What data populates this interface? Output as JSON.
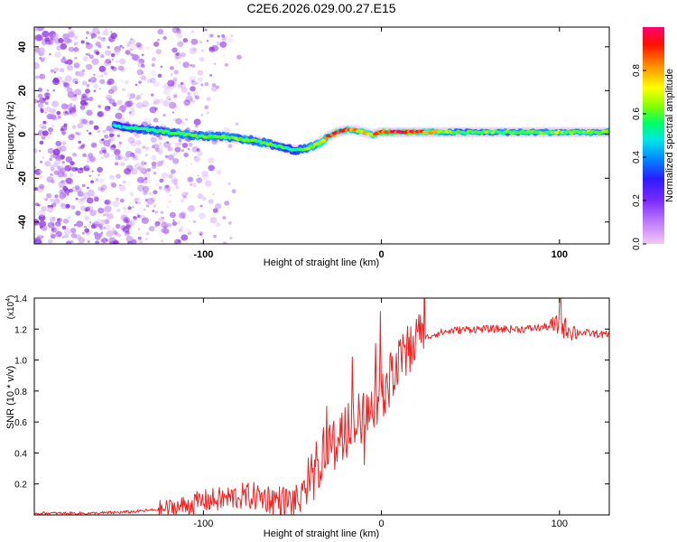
{
  "figure": {
    "title": "C2E6.2026.029.00.27.E15"
  },
  "chart_data": [
    {
      "type": "heatmap",
      "xlabel": "Height of straight line (km)",
      "ylabel": "Frequency (Hz)",
      "xlim": [
        -195,
        128
      ],
      "ylim": [
        -50,
        49
      ],
      "x_ticks": [
        -100,
        0,
        100
      ],
      "x_tick_labels": [
        "-100",
        "0",
        "100"
      ],
      "y_ticks": [
        -40,
        -20,
        0,
        20,
        40
      ],
      "y_tick_labels": [
        "-40",
        "-20",
        "0",
        "20",
        "40"
      ],
      "colorbar": {
        "label": "Normalized spectral amplitude",
        "range": [
          0,
          1
        ],
        "ticks": [
          0.0,
          0.2,
          0.4,
          0.6,
          0.8
        ],
        "tick_labels": [
          "0.0",
          "0.2",
          "0.4",
          "0.6",
          "0.8"
        ],
        "colors": [
          "#f2c8f5",
          "#9b4dff",
          "#3a18ff",
          "#00a8ff",
          "#00ffd0",
          "#40ff20",
          "#d8ff00",
          "#ffb000",
          "#ff2000",
          "#ff0060"
        ]
      },
      "noise_region_x": [
        -195,
        -110
      ],
      "ridge": {
        "x": [
          -150,
          -140,
          -130,
          -120,
          -110,
          -100,
          -90,
          -80,
          -70,
          -60,
          -50,
          -45,
          -40,
          -35,
          -30,
          -25,
          -20,
          -15,
          -10,
          -5,
          0,
          10,
          20,
          40,
          60,
          80,
          100,
          128
        ],
        "freq": [
          4,
          3,
          2,
          1,
          0,
          -1,
          -1,
          -2,
          -3,
          -5,
          -7,
          -7,
          -6,
          -4,
          -1,
          1,
          2,
          2,
          1,
          0,
          1,
          1,
          1,
          1,
          1,
          1,
          1,
          1
        ],
        "amplitude": [
          0.4,
          0.45,
          0.5,
          0.5,
          0.55,
          0.55,
          0.55,
          0.55,
          0.55,
          0.5,
          0.45,
          0.5,
          0.6,
          0.7,
          0.85,
          0.9,
          0.8,
          0.75,
          0.7,
          0.75,
          0.9,
          0.95,
          0.9,
          0.55,
          0.55,
          0.55,
          0.6,
          0.55
        ]
      }
    },
    {
      "type": "line",
      "xlabel": "Height of straight line (km)",
      "ylabel": "SNR (10 * v/v)",
      "y_multiplier_label": "(x10",
      "y_multiplier_exp": "4",
      "y_multiplier_close": ")",
      "xlim": [
        -195,
        128
      ],
      "ylim": [
        0.0,
        1.4
      ],
      "x_ticks": [
        -100,
        0,
        100
      ],
      "x_tick_labels": [
        "-100",
        "0",
        "100"
      ],
      "y_ticks": [
        0.2,
        0.4,
        0.6,
        0.8,
        1.0,
        1.2,
        1.4
      ],
      "y_tick_labels": [
        "0.2",
        "0.4",
        "0.6",
        "0.8",
        "1.0",
        "1.2",
        "1.4"
      ],
      "color": "#ee2222",
      "series": [
        {
          "name": "SNR",
          "x": [
            -195,
            -180,
            -160,
            -140,
            -130,
            -120,
            -110,
            -100,
            -90,
            -80,
            -70,
            -60,
            -50,
            -45,
            -40,
            -35,
            -30,
            -25,
            -20,
            -15,
            -10,
            -5,
            0,
            5,
            10,
            15,
            20,
            25,
            30,
            40,
            50,
            60,
            70,
            80,
            90,
            95,
            100,
            105,
            110,
            120,
            128
          ],
          "values": [
            0.01,
            0.01,
            0.01,
            0.02,
            0.03,
            0.04,
            0.06,
            0.09,
            0.1,
            0.12,
            0.12,
            0.1,
            0.08,
            0.1,
            0.15,
            0.3,
            0.4,
            0.42,
            0.48,
            0.55,
            0.6,
            0.66,
            0.74,
            0.82,
            0.9,
            1.0,
            1.08,
            1.14,
            1.17,
            1.19,
            1.2,
            1.2,
            1.2,
            1.2,
            1.21,
            1.22,
            1.22,
            1.2,
            1.18,
            1.17,
            1.16
          ]
        }
      ]
    }
  ]
}
